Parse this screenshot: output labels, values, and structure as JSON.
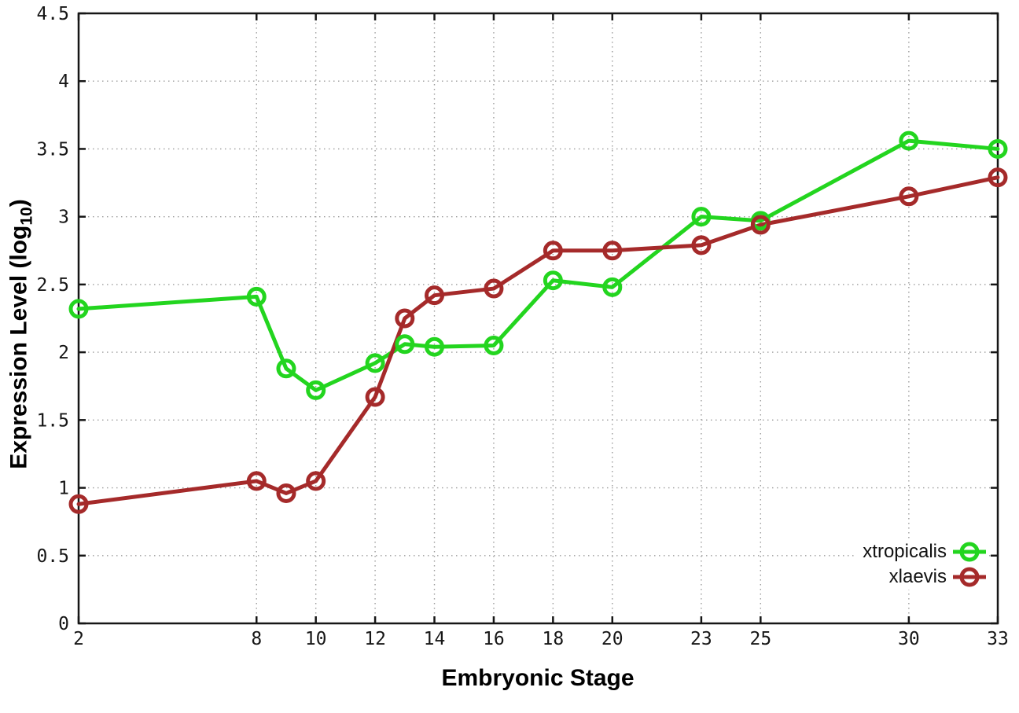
{
  "labels": {
    "xlabel": "Embryonic Stage",
    "ylabel_prefix": "Expression Level (log",
    "ylabel_sub": "10",
    "ylabel_suffix": ")"
  },
  "colors": {
    "xtropicalis": "#23d51f",
    "xlaevis": "#a52a2a",
    "grid": "#9c9c9c",
    "axis": "#161616"
  },
  "chart_data": {
    "type": "line",
    "title": "",
    "xlabel": "Embryonic Stage",
    "ylabel": "Expression Level (log10)",
    "x": [
      2,
      8,
      9,
      10,
      12,
      13,
      14,
      16,
      18,
      20,
      23,
      25,
      30,
      33
    ],
    "series": [
      {
        "name": "xtropicalis",
        "color": "#23d51f",
        "values": [
          2.32,
          2.41,
          1.88,
          1.72,
          1.92,
          2.06,
          2.04,
          2.05,
          2.53,
          2.48,
          3.0,
          2.97,
          3.56,
          3.5
        ]
      },
      {
        "name": "xlaevis",
        "color": "#a52a2a",
        "values": [
          0.88,
          1.05,
          0.96,
          1.05,
          1.67,
          2.25,
          2.42,
          2.47,
          2.75,
          2.75,
          2.79,
          2.94,
          3.15,
          3.29
        ]
      }
    ],
    "xticks": [
      2,
      8,
      10,
      12,
      14,
      16,
      18,
      20,
      23,
      25,
      30,
      33
    ],
    "xtick_labels": [
      "2",
      "8",
      "10",
      "12",
      "14",
      "16",
      "18",
      "20",
      "23",
      "25",
      "30",
      "33"
    ],
    "yticks": [
      0,
      0.5,
      1,
      1.5,
      2,
      2.5,
      3,
      3.5,
      4,
      4.5
    ],
    "ytick_labels": [
      "0",
      "0.5",
      "1",
      "1.5",
      "2",
      "2.5",
      "3",
      "3.5",
      "4",
      "4.5"
    ],
    "xlim": [
      2,
      33
    ],
    "ylim": [
      0,
      4.5
    ],
    "grid": true,
    "legend_position": "bottom-right-inside",
    "marker": "open-circle"
  }
}
